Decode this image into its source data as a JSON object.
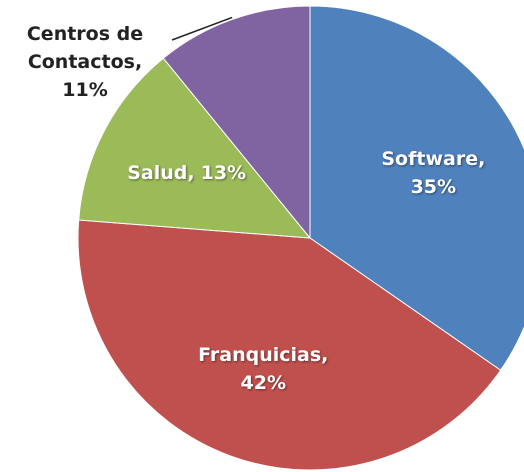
{
  "chart_data": {
    "type": "pie",
    "categories": [
      "Software,",
      "Franquicias,",
      "Salud,",
      "Centros de Contactos,"
    ],
    "values": [
      35,
      42,
      13,
      11
    ],
    "value_labels": [
      "35%",
      "42%",
      "13%",
      "11%"
    ],
    "colors": [
      "#4f81bd",
      "#c0504d",
      "#9bbb59",
      "#8064a2"
    ]
  }
}
